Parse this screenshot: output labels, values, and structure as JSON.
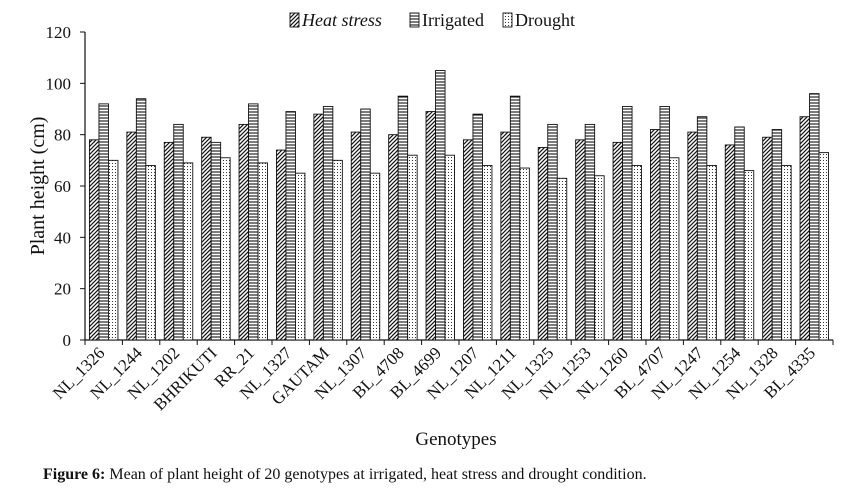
{
  "chart_data": {
    "type": "bar",
    "title": "",
    "xlabel": "Genotypes",
    "ylabel": "Plant height (cm)",
    "ylim": [
      0,
      120
    ],
    "yticks": [
      0,
      20,
      40,
      60,
      80,
      100,
      120
    ],
    "grid": false,
    "legend_position": "top-center",
    "categories": [
      "NL_1326",
      "NL_1244",
      "NL_1202",
      "BHRIKUTI",
      "RR_21",
      "NL_1327",
      "GAUTAM",
      "NL_1307",
      "BL_4708",
      "BL_4699",
      "NL_1207",
      "NL_1211",
      "NL_1325",
      "NL_1253",
      "NL_1260",
      "BL_4707",
      "NL_1247",
      "NL_1254",
      "NL_1328",
      "BL_4335"
    ],
    "series": [
      {
        "name": "Heat stress",
        "pattern": "diagonal-hatch",
        "values": [
          78,
          81,
          77,
          79,
          84,
          74,
          88,
          81,
          80,
          89,
          78,
          81,
          75,
          78,
          77,
          82,
          81,
          76,
          79,
          87
        ]
      },
      {
        "name": "Irrigated",
        "pattern": "horizontal-stripes",
        "values": [
          92,
          94,
          84,
          77,
          92,
          89,
          91,
          90,
          95,
          105,
          88,
          95,
          84,
          84,
          91,
          91,
          87,
          83,
          82,
          96
        ]
      },
      {
        "name": "Drought",
        "pattern": "dots",
        "values": [
          70,
          68,
          69,
          71,
          69,
          65,
          70,
          65,
          72,
          72,
          68,
          67,
          63,
          64,
          68,
          71,
          68,
          66,
          68,
          73
        ]
      }
    ]
  },
  "caption": {
    "label": "Figure 6:",
    "text": " Mean of plant height of 20 genotypes at irrigated, heat stress and drought condition."
  },
  "colors": {
    "ink": "#111111",
    "fill": "#ffffff"
  }
}
